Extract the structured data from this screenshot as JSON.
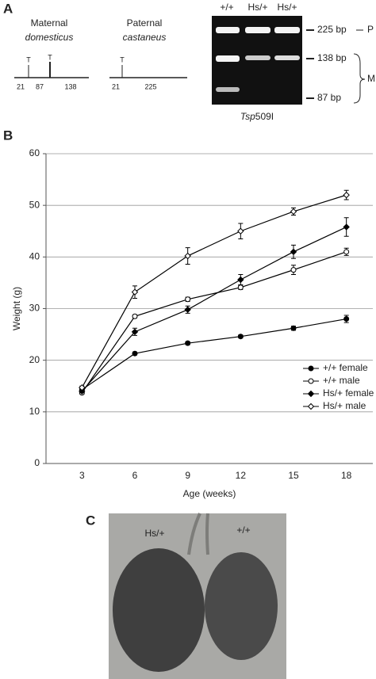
{
  "panel_a": {
    "label": "A",
    "maternal": {
      "title": "Maternal",
      "strain": "domesticus",
      "sites": [
        "T",
        "T"
      ],
      "fragments": [
        "21",
        "87",
        "138"
      ]
    },
    "paternal": {
      "title": "Paternal",
      "strain": "castaneus",
      "sites": [
        "T"
      ],
      "fragments": [
        "21",
        "225"
      ]
    },
    "gel": {
      "lanes": [
        "+/+",
        "Hs/+",
        "Hs/+"
      ],
      "sizes": [
        "225 bp",
        "138 bp",
        "87 bp"
      ],
      "groups": [
        "P",
        "M"
      ],
      "enzyme_italic": "Tsp",
      "enzyme_rest": "509I"
    }
  },
  "chart_data": {
    "type": "line",
    "label": "B",
    "x_label": "Age (weeks)",
    "y_label": "Weight (g)",
    "categories": [
      "3",
      "6",
      "9",
      "12",
      "15",
      "18"
    ],
    "ylim": [
      0,
      60
    ],
    "yticks": [
      0,
      10,
      20,
      30,
      40,
      50,
      60
    ],
    "grid": true,
    "legend": "lower-right",
    "series": [
      {
        "name": "+/+ female",
        "color": "#000000",
        "marker": "circle",
        "filled": true,
        "values": [
          14.3,
          21.3,
          23.3,
          24.6,
          26.2,
          28.0
        ],
        "errors": [
          0.3,
          0.3,
          0.3,
          0.3,
          0.4,
          0.7
        ]
      },
      {
        "name": "+/+ male",
        "color": "#000000",
        "marker": "circle",
        "filled": false,
        "values": [
          13.7,
          28.5,
          31.8,
          34.1,
          37.5,
          41.0
        ],
        "errors": [
          0.3,
          0.3,
          0.4,
          0.4,
          0.9,
          0.7
        ]
      },
      {
        "name": "Hs/+ female",
        "color": "#000000",
        "marker": "diamond",
        "filled": true,
        "values": [
          14.0,
          25.5,
          29.8,
          35.6,
          41.0,
          45.8
        ],
        "errors": [
          0.3,
          0.7,
          0.7,
          1.0,
          1.3,
          1.8
        ]
      },
      {
        "name": "Hs/+ male",
        "color": "#000000",
        "marker": "diamond",
        "filled": false,
        "values": [
          14.7,
          33.2,
          40.2,
          45.0,
          48.8,
          52.0
        ],
        "errors": [
          0.3,
          1.2,
          1.6,
          1.5,
          0.7,
          0.9
        ]
      }
    ]
  },
  "panel_c": {
    "label": "C",
    "left": "Hs/+",
    "right": "+/+"
  }
}
